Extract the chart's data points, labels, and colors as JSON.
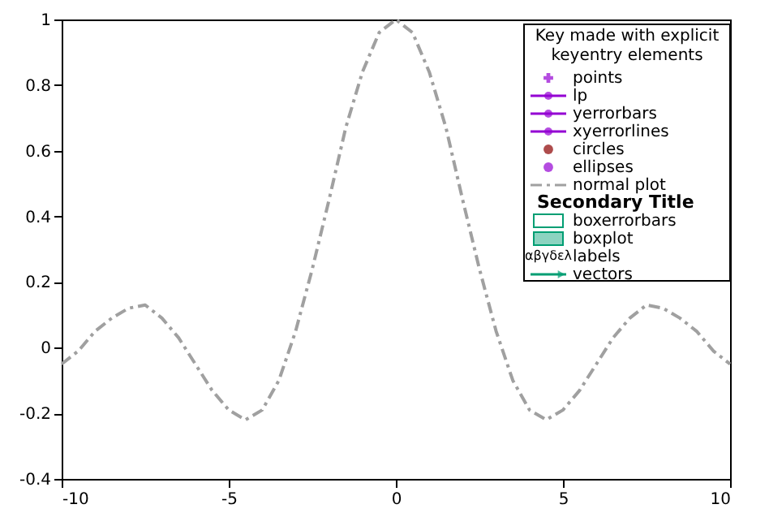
{
  "chart_data": {
    "type": "line",
    "legend_title": "Key made with explicit\nkeyentry elements",
    "legend": "top right",
    "annotations": [
      "Secondary Title",
      "αβγδελ"
    ],
    "xlim": [
      -10,
      10
    ],
    "xticks": [
      -10,
      -5,
      0,
      5,
      10
    ],
    "ylim": [
      -0.4,
      1
    ],
    "yticks": [
      -0.4,
      -0.2,
      0,
      0.2,
      0.4,
      0.6,
      0.8,
      1
    ],
    "grid": false,
    "series": [
      {
        "name": "points",
        "color": "#9400d3",
        "type": "scatter",
        "marker": "cross"
      },
      {
        "name": "lp",
        "color": "#9400d3",
        "type": "line",
        "marker": "circle",
        "line_style": "solid"
      },
      {
        "name": "yerrorbars",
        "color": "#9400d3",
        "type": "line",
        "marker": "circle",
        "line_style": "solid"
      },
      {
        "name": "xyerrorlines",
        "color": "#9400d3",
        "type": "line",
        "marker": "circle",
        "line_style": "solid"
      },
      {
        "name": "circles",
        "color": "#8b0000",
        "type": "scatter",
        "marker": "circle"
      },
      {
        "name": "ellipses",
        "color": "#9400d3",
        "type": "scatter",
        "marker": "circle"
      },
      {
        "name": "normal plot",
        "color": "#a0a0a0",
        "marker": "none",
        "line_style": "dashed",
        "x": [
          -10,
          -9.5,
          -9,
          -8.5,
          -8,
          -7.5,
          -7,
          -6.5,
          -6,
          -5.5,
          -5,
          -4.5,
          -4,
          -3.5,
          -3,
          -2.5,
          -2,
          -1.5,
          -1,
          -0.5,
          0,
          0.5,
          1,
          1.5,
          2,
          2.5,
          3,
          3.5,
          4,
          4.5,
          5,
          5.5,
          6,
          6.5,
          7,
          7.5,
          8,
          8.5,
          9,
          9.5,
          10
        ],
        "values": [
          -0.05,
          -0.01,
          0.05,
          0.09,
          0.12,
          0.13,
          0.09,
          0.03,
          -0.05,
          -0.13,
          -0.19,
          -0.22,
          -0.19,
          -0.1,
          0.05,
          0.24,
          0.45,
          0.67,
          0.84,
          0.96,
          1,
          0.96,
          0.84,
          0.67,
          0.45,
          0.24,
          0.05,
          -0.1,
          -0.19,
          -0.22,
          -0.19,
          -0.13,
          -0.05,
          0.03,
          0.09,
          0.13,
          0.12,
          0.09,
          0.05,
          -0.01,
          -0.05
        ]
      },
      {
        "name": "boxerrorbars",
        "color": "#009e73",
        "type": "bar"
      },
      {
        "name": "boxplot",
        "color": "#009e73",
        "type": "box"
      },
      {
        "name": "labels",
        "color": "#000000",
        "type": "other"
      },
      {
        "name": "vectors",
        "color": "#009e73",
        "type": "line",
        "marker": "triangle",
        "line_style": "solid"
      }
    ]
  }
}
